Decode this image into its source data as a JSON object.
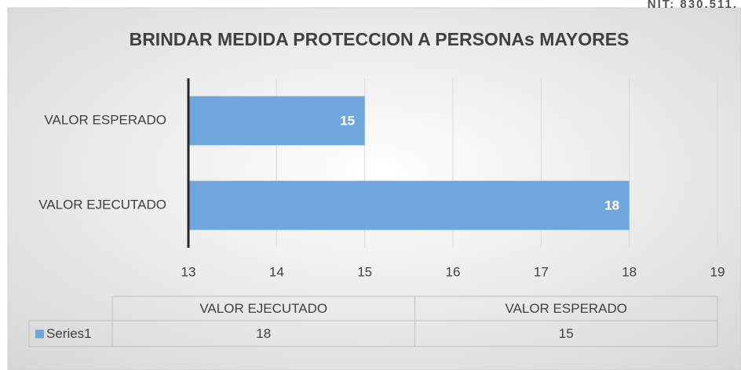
{
  "header_text": "NIT: 830.511.",
  "chart_data": {
    "type": "bar",
    "orientation": "horizontal",
    "title": "BRINDAR MEDIDA PROTECCION A PERSONAs MAYORES",
    "categories": [
      "VALOR EJECUTADO",
      "VALOR ESPERADO"
    ],
    "series": [
      {
        "name": "Series1",
        "color": "#6fa7dc",
        "values": [
          18,
          15
        ]
      }
    ],
    "xlim": [
      13,
      19
    ],
    "xticks": [
      13,
      14,
      15,
      16,
      17,
      18,
      19
    ],
    "grid": true,
    "data_table": true
  }
}
